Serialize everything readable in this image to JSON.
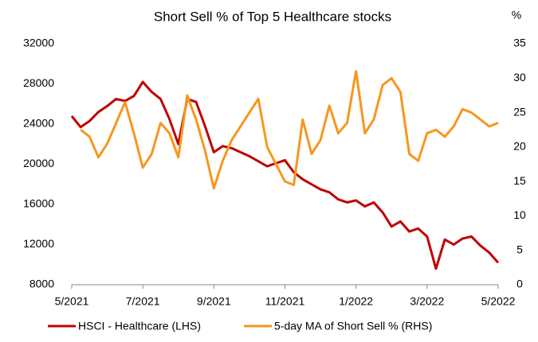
{
  "chart_data": {
    "type": "line",
    "title": "Short Sell % of Top 5 Healthcare stocks",
    "y2_axis_label": "%",
    "x": [
      0,
      0.25,
      0.5,
      0.75,
      1,
      1.25,
      1.5,
      1.75,
      2,
      2.25,
      2.5,
      2.75,
      3,
      3.25,
      3.5,
      3.75,
      4,
      4.25,
      4.5,
      4.75,
      5,
      5.25,
      5.5,
      5.75,
      6,
      6.25,
      6.5,
      6.75,
      7,
      7.25,
      7.5,
      7.75,
      8,
      8.25,
      8.5,
      8.75,
      9,
      9.25,
      9.5,
      9.75,
      10,
      10.25,
      10.5,
      10.75,
      11,
      11.25,
      11.5,
      11.75,
      12
    ],
    "xlim": [
      0,
      12
    ],
    "xticks": [
      {
        "value": 0,
        "label": "5/2021"
      },
      {
        "value": 2,
        "label": "7/2021"
      },
      {
        "value": 4,
        "label": "9/2021"
      },
      {
        "value": 6,
        "label": "11/2021"
      },
      {
        "value": 8,
        "label": "1/2022"
      },
      {
        "value": 10,
        "label": "3/2022"
      },
      {
        "value": 12,
        "label": "5/2022"
      }
    ],
    "ylim": [
      8000,
      32000
    ],
    "yticks": [
      8000,
      12000,
      16000,
      20000,
      24000,
      28000,
      32000
    ],
    "y2lim": [
      0,
      35
    ],
    "y2ticks": [
      0,
      5,
      10,
      15,
      20,
      25,
      30,
      35
    ],
    "grid": false,
    "legend": "bottom",
    "series": [
      {
        "name": "HSCI - Healthcare (LHS)",
        "color": "#c00000",
        "values": [
          24800,
          23700,
          24300,
          25200,
          25800,
          26500,
          26300,
          26800,
          28200,
          27200,
          26500,
          24500,
          22000,
          26500,
          26200,
          23800,
          21200,
          21800,
          21600,
          21200,
          20800,
          20300,
          19800,
          20100,
          20400,
          19200,
          18500,
          18000,
          17500,
          17200,
          16500,
          16200,
          16400,
          15800,
          16200,
          15200,
          13800,
          14300,
          13300,
          13600,
          12800,
          9600,
          12500,
          12000,
          12600,
          12800,
          11900,
          11200,
          10200
        ]
      },
      {
        "name": "5-day MA of Short Sell % (RHS)",
        "color": "#f7961e",
        "axis": "y2",
        "values": [
          null,
          22.5,
          21.5,
          18.5,
          20.5,
          23.5,
          26.5,
          22,
          17,
          19,
          23.5,
          22,
          18.5,
          27.5,
          24,
          19.5,
          14,
          18,
          21,
          23,
          25,
          27,
          20,
          17.5,
          15,
          14.5,
          24,
          19,
          21,
          26,
          22,
          23.5,
          31,
          22,
          24,
          29,
          30,
          28,
          19,
          18,
          22,
          22.5,
          21.5,
          23,
          25.5,
          25,
          24,
          23,
          23.5
        ]
      }
    ]
  }
}
